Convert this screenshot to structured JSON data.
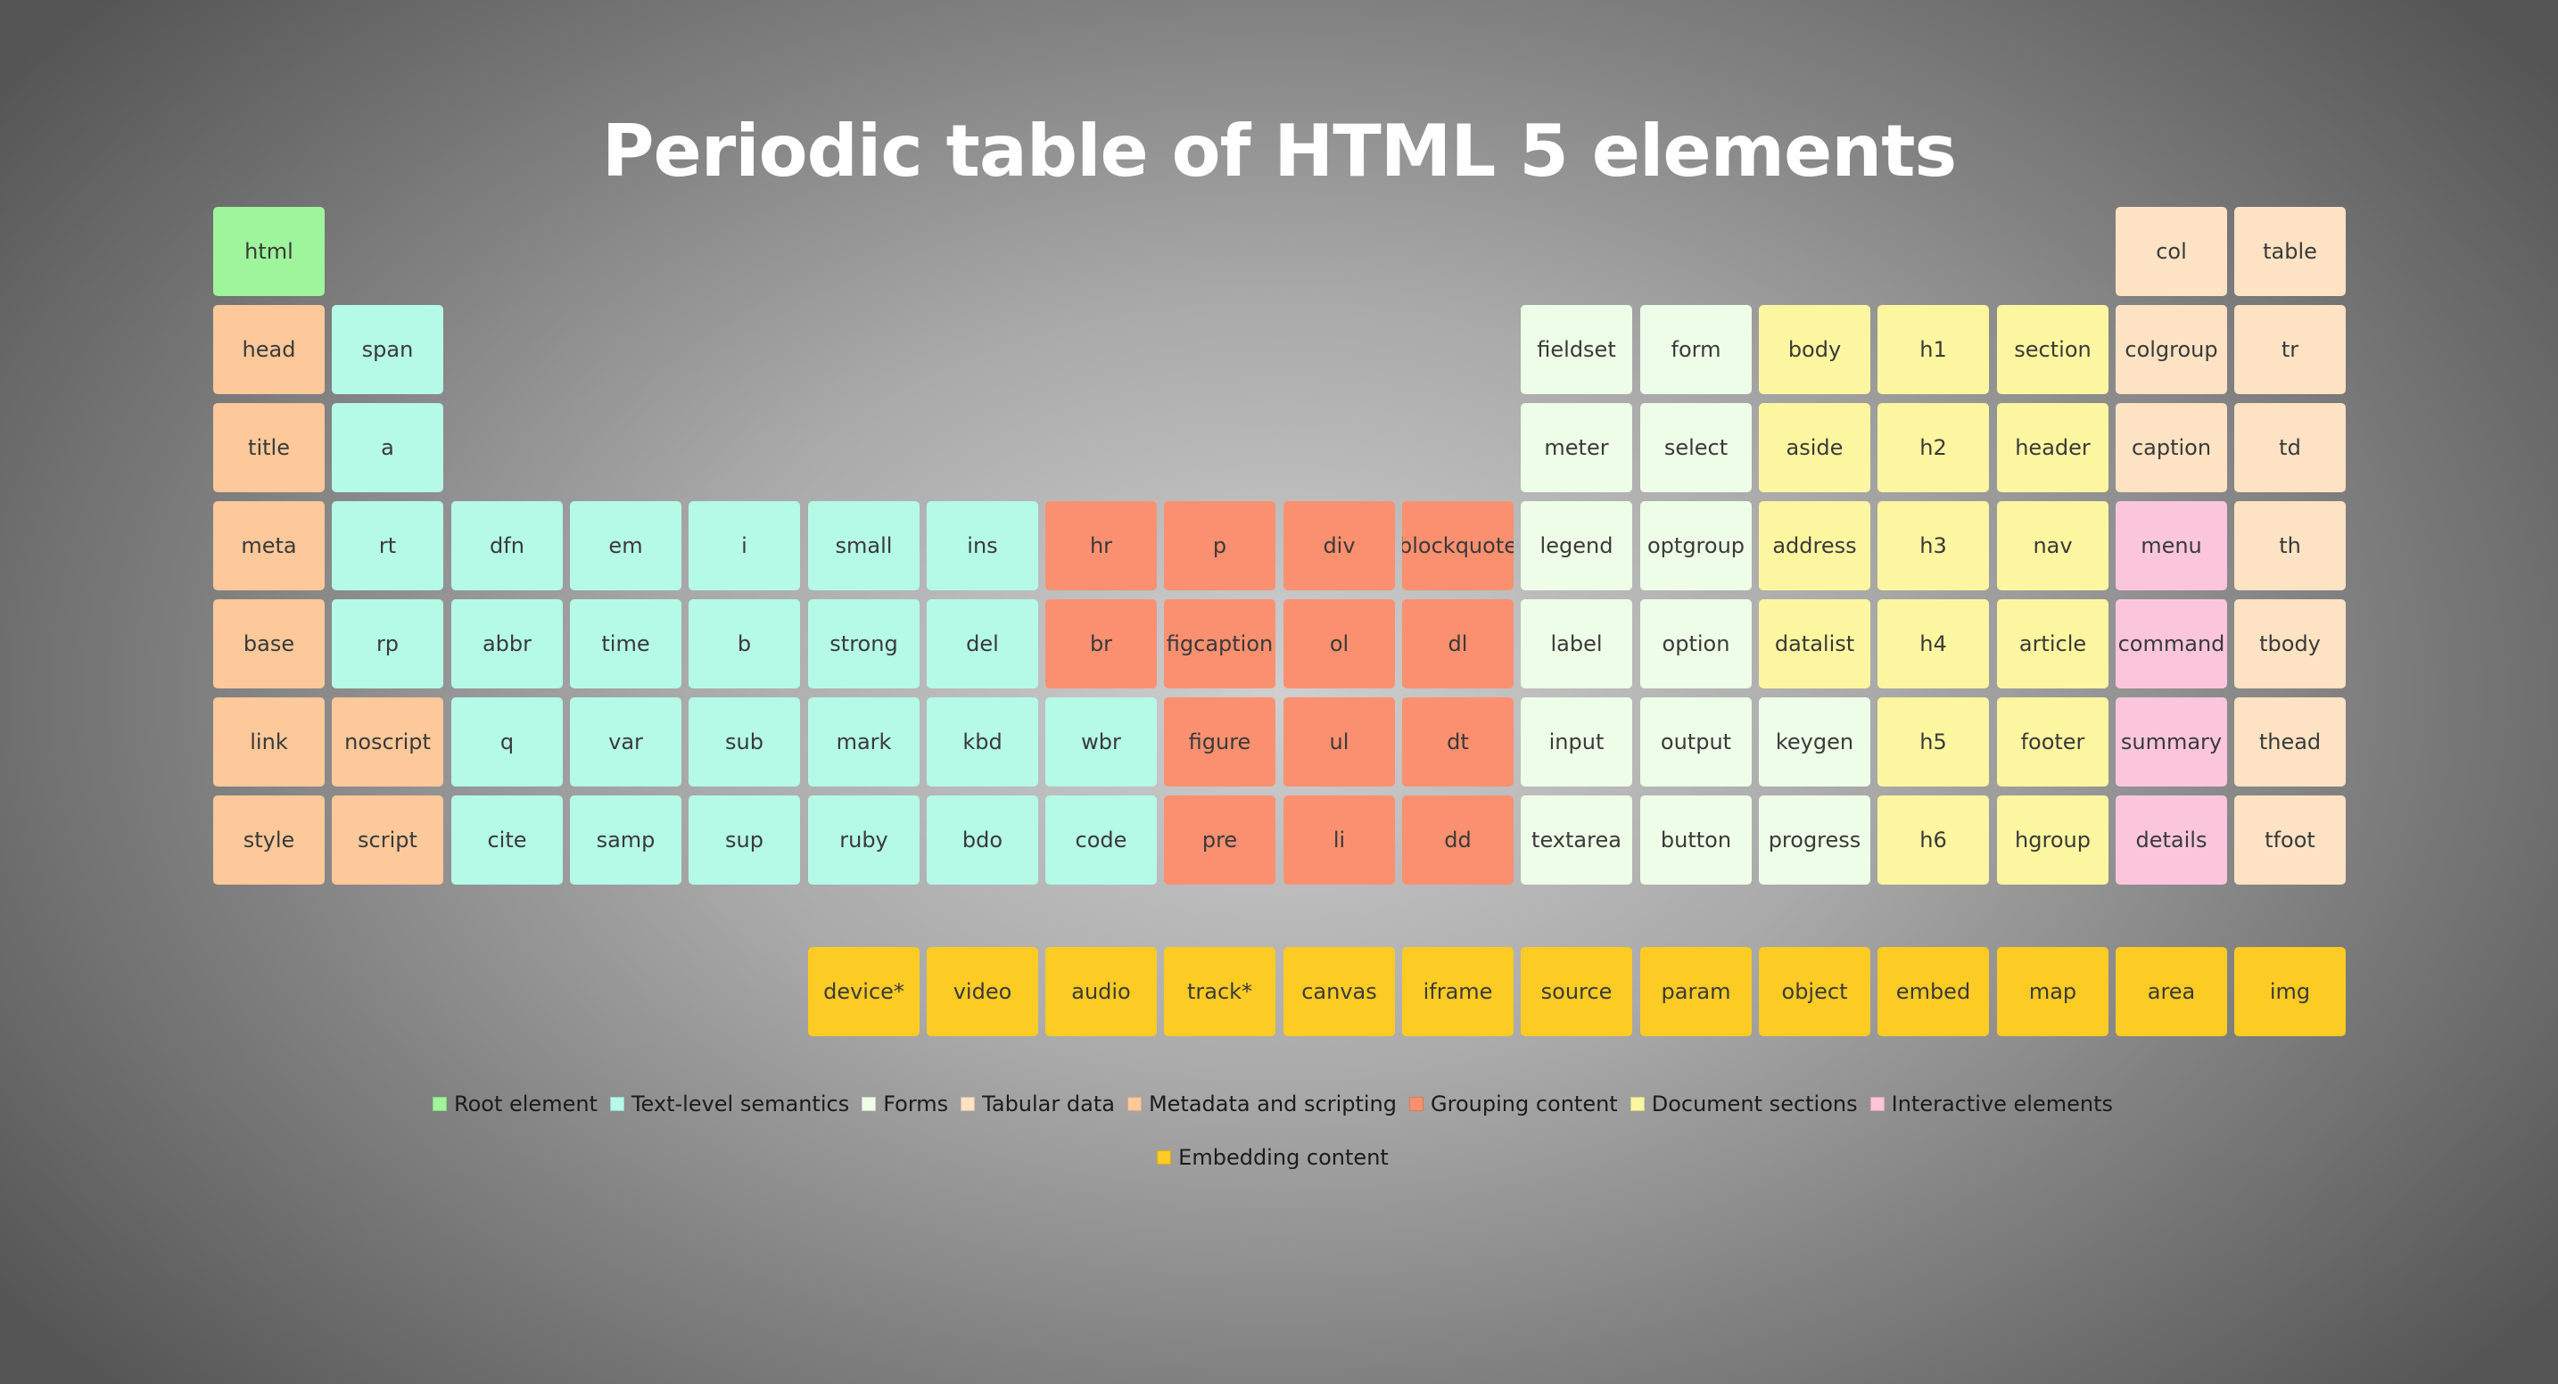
{
  "title": "Periodic table of HTML 5 elements",
  "colors": {
    "root": "#9ef59c",
    "text": "#b5f9e7",
    "forms": "#eefde7",
    "tabular": "#fde2c3",
    "meta": "#fdc89a",
    "grouping": "#fa9070",
    "sections": "#fdf6a0",
    "interactive": "#fbc6db",
    "embedding": "#fccb24"
  },
  "main_table": [
    [
      {
        "label": "html",
        "cat": "root",
        "col": 0
      },
      {
        "label": "col",
        "cat": "tabular",
        "col": 16
      },
      {
        "label": "table",
        "cat": "tabular",
        "col": 17
      }
    ],
    [
      {
        "label": "head",
        "cat": "meta",
        "col": 0
      },
      {
        "label": "span",
        "cat": "text",
        "col": 1
      },
      {
        "label": "fieldset",
        "cat": "forms",
        "col": 11
      },
      {
        "label": "form",
        "cat": "forms",
        "col": 12
      },
      {
        "label": "body",
        "cat": "sections",
        "col": 13
      },
      {
        "label": "h1",
        "cat": "sections",
        "col": 14
      },
      {
        "label": "section",
        "cat": "sections",
        "col": 15
      },
      {
        "label": "colgroup",
        "cat": "tabular",
        "col": 16
      },
      {
        "label": "tr",
        "cat": "tabular",
        "col": 17
      }
    ],
    [
      {
        "label": "title",
        "cat": "meta",
        "col": 0
      },
      {
        "label": "a",
        "cat": "text",
        "col": 1
      },
      {
        "label": "meter",
        "cat": "forms",
        "col": 11
      },
      {
        "label": "select",
        "cat": "forms",
        "col": 12
      },
      {
        "label": "aside",
        "cat": "sections",
        "col": 13
      },
      {
        "label": "h2",
        "cat": "sections",
        "col": 14
      },
      {
        "label": "header",
        "cat": "sections",
        "col": 15
      },
      {
        "label": "caption",
        "cat": "tabular",
        "col": 16
      },
      {
        "label": "td",
        "cat": "tabular",
        "col": 17
      }
    ],
    [
      {
        "label": "meta",
        "cat": "meta",
        "col": 0
      },
      {
        "label": "rt",
        "cat": "text",
        "col": 1
      },
      {
        "label": "dfn",
        "cat": "text",
        "col": 2
      },
      {
        "label": "em",
        "cat": "text",
        "col": 3
      },
      {
        "label": "i",
        "cat": "text",
        "col": 4
      },
      {
        "label": "small",
        "cat": "text",
        "col": 5
      },
      {
        "label": "ins",
        "cat": "text",
        "col": 6
      },
      {
        "label": "hr",
        "cat": "grouping",
        "col": 7
      },
      {
        "label": "p",
        "cat": "grouping",
        "col": 8
      },
      {
        "label": "div",
        "cat": "grouping",
        "col": 9
      },
      {
        "label": "blockquote",
        "cat": "grouping",
        "col": 10
      },
      {
        "label": "legend",
        "cat": "forms",
        "col": 11
      },
      {
        "label": "optgroup",
        "cat": "forms",
        "col": 12
      },
      {
        "label": "address",
        "cat": "sections",
        "col": 13
      },
      {
        "label": "h3",
        "cat": "sections",
        "col": 14
      },
      {
        "label": "nav",
        "cat": "sections",
        "col": 15
      },
      {
        "label": "menu",
        "cat": "interactive",
        "col": 16
      },
      {
        "label": "th",
        "cat": "tabular",
        "col": 17
      }
    ],
    [
      {
        "label": "base",
        "cat": "meta",
        "col": 0
      },
      {
        "label": "rp",
        "cat": "text",
        "col": 1
      },
      {
        "label": "abbr",
        "cat": "text",
        "col": 2
      },
      {
        "label": "time",
        "cat": "text",
        "col": 3
      },
      {
        "label": "b",
        "cat": "text",
        "col": 4
      },
      {
        "label": "strong",
        "cat": "text",
        "col": 5
      },
      {
        "label": "del",
        "cat": "text",
        "col": 6
      },
      {
        "label": "br",
        "cat": "grouping",
        "col": 7
      },
      {
        "label": "figcaption",
        "cat": "grouping",
        "col": 8
      },
      {
        "label": "ol",
        "cat": "grouping",
        "col": 9
      },
      {
        "label": "dl",
        "cat": "grouping",
        "col": 10
      },
      {
        "label": "label",
        "cat": "forms",
        "col": 11
      },
      {
        "label": "option",
        "cat": "forms",
        "col": 12
      },
      {
        "label": "datalist",
        "cat": "sections",
        "col": 13
      },
      {
        "label": "h4",
        "cat": "sections",
        "col": 14
      },
      {
        "label": "article",
        "cat": "sections",
        "col": 15
      },
      {
        "label": "command",
        "cat": "interactive",
        "col": 16
      },
      {
        "label": "tbody",
        "cat": "tabular",
        "col": 17
      }
    ],
    [
      {
        "label": "link",
        "cat": "meta",
        "col": 0
      },
      {
        "label": "noscript",
        "cat": "meta",
        "col": 1
      },
      {
        "label": "q",
        "cat": "text",
        "col": 2
      },
      {
        "label": "var",
        "cat": "text",
        "col": 3
      },
      {
        "label": "sub",
        "cat": "text",
        "col": 4
      },
      {
        "label": "mark",
        "cat": "text",
        "col": 5
      },
      {
        "label": "kbd",
        "cat": "text",
        "col": 6
      },
      {
        "label": "wbr",
        "cat": "text",
        "col": 7
      },
      {
        "label": "figure",
        "cat": "grouping",
        "col": 8
      },
      {
        "label": "ul",
        "cat": "grouping",
        "col": 9
      },
      {
        "label": "dt",
        "cat": "grouping",
        "col": 10
      },
      {
        "label": "input",
        "cat": "forms",
        "col": 11
      },
      {
        "label": "output",
        "cat": "forms",
        "col": 12
      },
      {
        "label": "keygen",
        "cat": "forms",
        "col": 13
      },
      {
        "label": "h5",
        "cat": "sections",
        "col": 14
      },
      {
        "label": "footer",
        "cat": "sections",
        "col": 15
      },
      {
        "label": "summary",
        "cat": "interactive",
        "col": 16
      },
      {
        "label": "thead",
        "cat": "tabular",
        "col": 17
      }
    ],
    [
      {
        "label": "style",
        "cat": "meta",
        "col": 0
      },
      {
        "label": "script",
        "cat": "meta",
        "col": 1
      },
      {
        "label": "cite",
        "cat": "text",
        "col": 2
      },
      {
        "label": "samp",
        "cat": "text",
        "col": 3
      },
      {
        "label": "sup",
        "cat": "text",
        "col": 4
      },
      {
        "label": "ruby",
        "cat": "text",
        "col": 5
      },
      {
        "label": "bdo",
        "cat": "text",
        "col": 6
      },
      {
        "label": "code",
        "cat": "text",
        "col": 7
      },
      {
        "label": "pre",
        "cat": "grouping",
        "col": 8
      },
      {
        "label": "li",
        "cat": "grouping",
        "col": 9
      },
      {
        "label": "dd",
        "cat": "grouping",
        "col": 10
      },
      {
        "label": "textarea",
        "cat": "forms",
        "col": 11
      },
      {
        "label": "button",
        "cat": "forms",
        "col": 12
      },
      {
        "label": "progress",
        "cat": "forms",
        "col": 13
      },
      {
        "label": "h6",
        "cat": "sections",
        "col": 14
      },
      {
        "label": "hgroup",
        "cat": "sections",
        "col": 15
      },
      {
        "label": "details",
        "cat": "interactive",
        "col": 16
      },
      {
        "label": "tfoot",
        "cat": "tabular",
        "col": 17
      }
    ]
  ],
  "embedding_row": [
    {
      "label": "device*",
      "cat": "embedding",
      "col": 5
    },
    {
      "label": "video",
      "cat": "embedding",
      "col": 6
    },
    {
      "label": "audio",
      "cat": "embedding",
      "col": 7
    },
    {
      "label": "track*",
      "cat": "embedding",
      "col": 8
    },
    {
      "label": "canvas",
      "cat": "embedding",
      "col": 9
    },
    {
      "label": "iframe",
      "cat": "embedding",
      "col": 10
    },
    {
      "label": "source",
      "cat": "embedding",
      "col": 11
    },
    {
      "label": "param",
      "cat": "embedding",
      "col": 12
    },
    {
      "label": "object",
      "cat": "embedding",
      "col": 13
    },
    {
      "label": "embed",
      "cat": "embedding",
      "col": 14
    },
    {
      "label": "map",
      "cat": "embedding",
      "col": 15
    },
    {
      "label": "area",
      "cat": "embedding",
      "col": 16
    },
    {
      "label": "img",
      "cat": "embedding",
      "col": 17
    }
  ],
  "legend": {
    "row1": [
      {
        "label": "Root element",
        "cat": "root"
      },
      {
        "label": "Text-level semantics",
        "cat": "text"
      },
      {
        "label": "Forms",
        "cat": "forms"
      },
      {
        "label": "Tabular data",
        "cat": "tabular"
      },
      {
        "label": "Metadata and scripting",
        "cat": "meta"
      },
      {
        "label": "Grouping content",
        "cat": "grouping"
      },
      {
        "label": "Document sections",
        "cat": "sections"
      },
      {
        "label": "Interactive elements",
        "cat": "interactive"
      }
    ],
    "row2": [
      {
        "label": "Embedding content",
        "cat": "embedding"
      }
    ]
  }
}
